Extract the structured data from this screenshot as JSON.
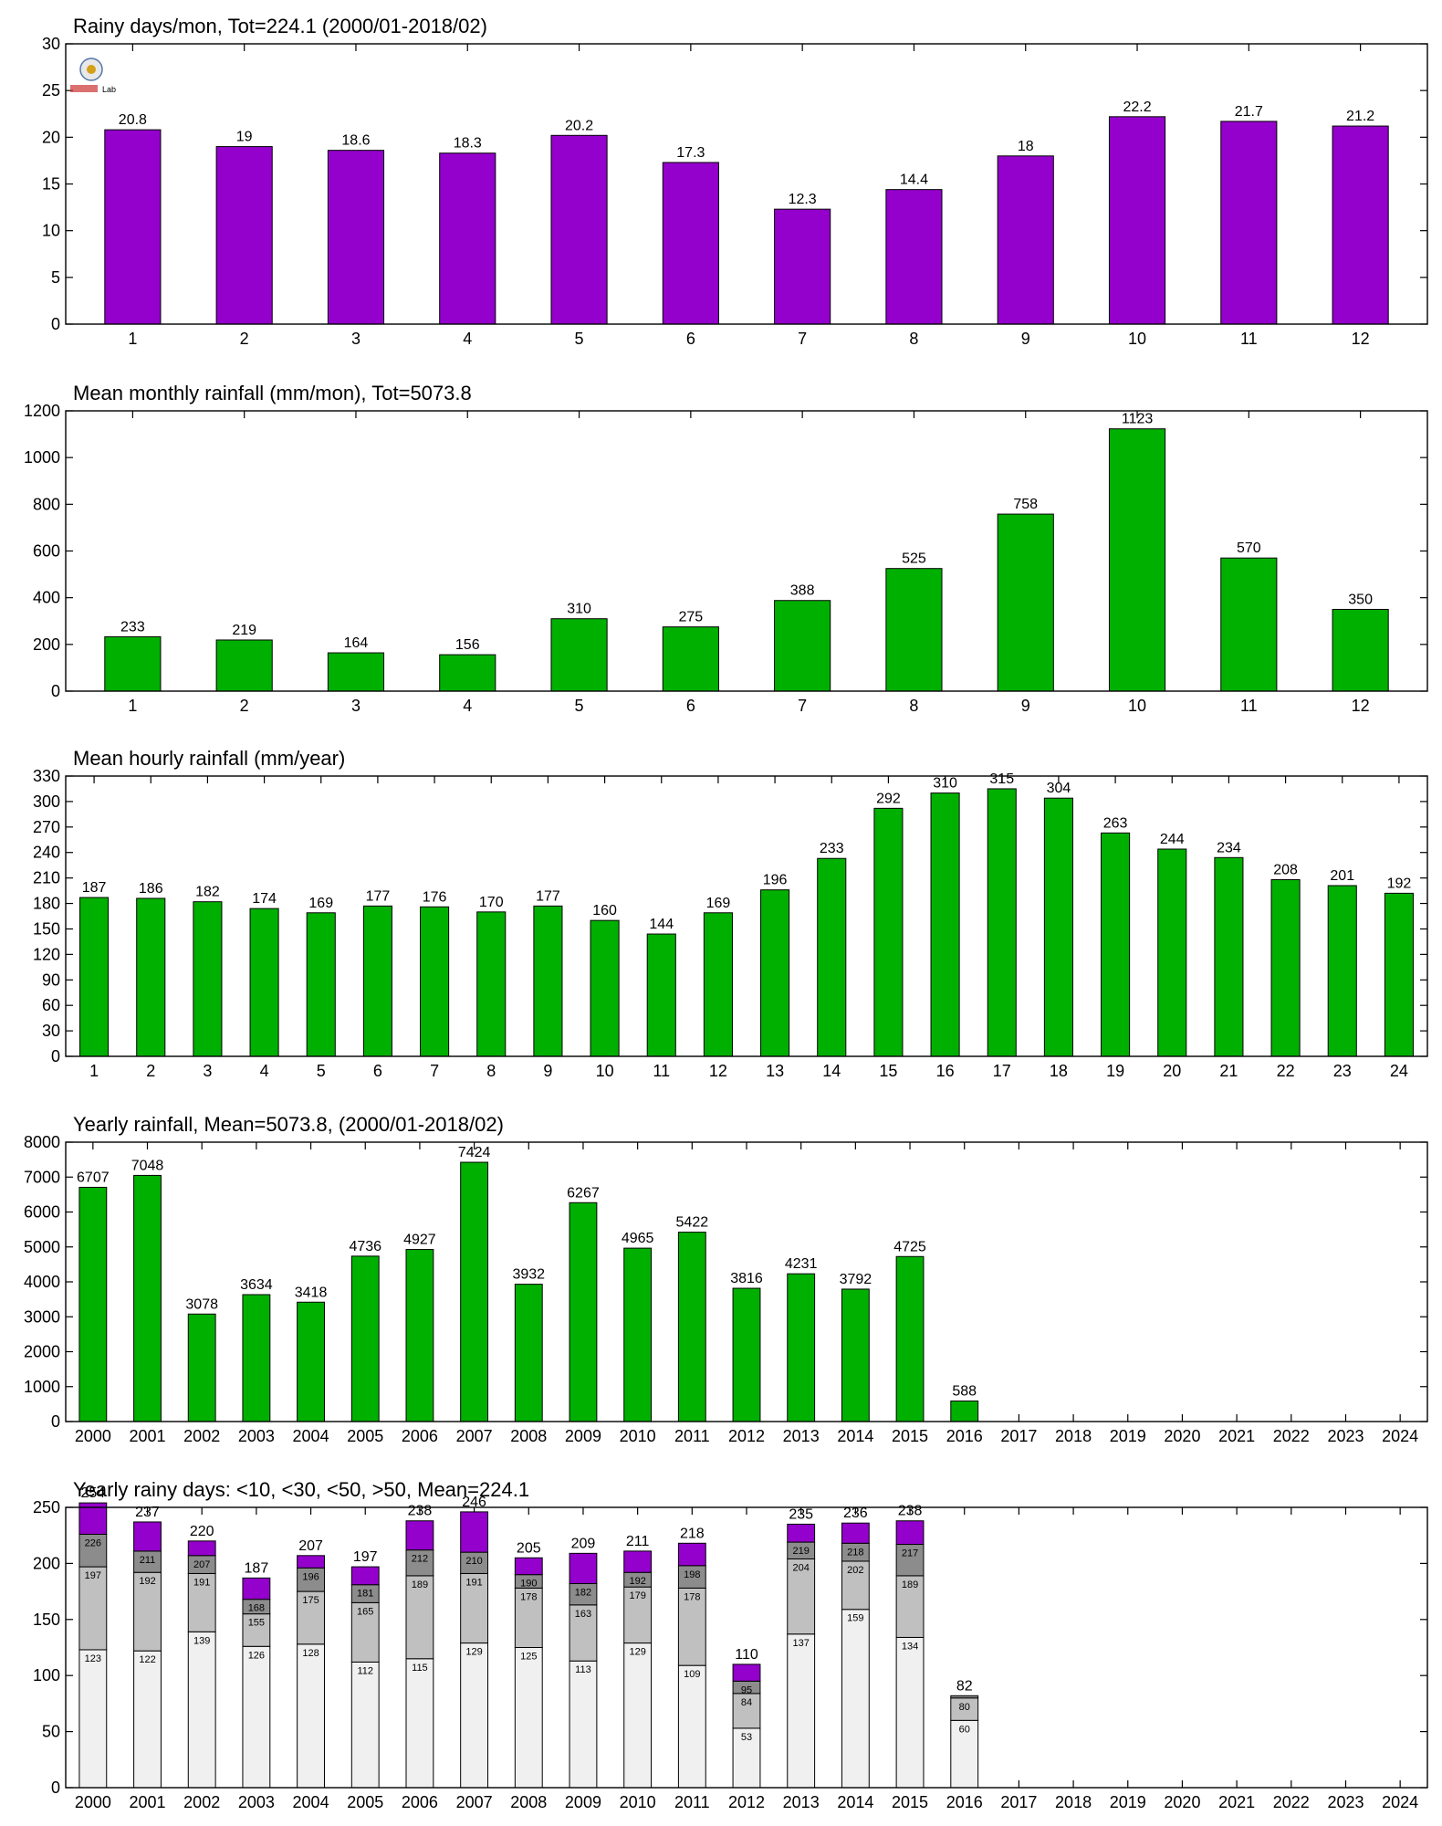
{
  "chart_data": [
    {
      "type": "bar",
      "title": "Rainy days/mon, Tot=224.1 (2000/01-2018/02)",
      "categories": [
        "1",
        "2",
        "3",
        "4",
        "5",
        "6",
        "7",
        "8",
        "9",
        "10",
        "11",
        "12"
      ],
      "values": [
        20.8,
        19,
        18.6,
        18.3,
        20.2,
        17.3,
        12.3,
        14.4,
        18,
        22.2,
        21.7,
        21.2
      ],
      "value_labels": [
        "20.8",
        "19",
        "18.6",
        "18.3",
        "20.2",
        "17.3",
        "12.3",
        "14.4",
        "18",
        "22.2",
        "21.7",
        "21.2"
      ],
      "ylim": [
        0,
        30
      ],
      "yticks": [
        0,
        5,
        10,
        15,
        20,
        25,
        30
      ],
      "color": "#9400cc",
      "grid": false
    },
    {
      "type": "bar",
      "title": "Mean monthly rainfall (mm/mon), Tot=5073.8",
      "categories": [
        "1",
        "2",
        "3",
        "4",
        "5",
        "6",
        "7",
        "8",
        "9",
        "10",
        "11",
        "12"
      ],
      "values": [
        233,
        219,
        164,
        156,
        310,
        275,
        388,
        525,
        758,
        1123,
        570,
        350
      ],
      "value_labels": [
        "233",
        "219",
        "164",
        "156",
        "310",
        "275",
        "388",
        "525",
        "758",
        "1123",
        "570",
        "350"
      ],
      "ylim": [
        0,
        1200
      ],
      "yticks": [
        0,
        200,
        400,
        600,
        800,
        1000,
        1200
      ],
      "color": "#00b000",
      "grid": false
    },
    {
      "type": "bar",
      "title": "Mean hourly rainfall (mm/year)",
      "categories": [
        "1",
        "2",
        "3",
        "4",
        "5",
        "6",
        "7",
        "8",
        "9",
        "10",
        "11",
        "12",
        "13",
        "14",
        "15",
        "16",
        "17",
        "18",
        "19",
        "20",
        "21",
        "22",
        "23",
        "24"
      ],
      "values": [
        187,
        186,
        182,
        174,
        169,
        177,
        176,
        170,
        177,
        160,
        144,
        169,
        196,
        233,
        292,
        310,
        315,
        304,
        263,
        244,
        234,
        208,
        201,
        192
      ],
      "value_labels": [
        "187",
        "186",
        "182",
        "174",
        "169",
        "177",
        "176",
        "170",
        "177",
        "160",
        "144",
        "169",
        "196",
        "233",
        "292",
        "310",
        "315",
        "304",
        "263",
        "244",
        "234",
        "208",
        "201",
        "192"
      ],
      "ylim": [
        0,
        330
      ],
      "yticks": [
        0,
        30,
        60,
        90,
        120,
        150,
        180,
        210,
        240,
        270,
        300,
        330
      ],
      "color": "#00b000",
      "grid": false
    },
    {
      "type": "bar",
      "title": "Yearly rainfall, Mean=5073.8, (2000/01-2018/02)",
      "categories": [
        "2000",
        "2001",
        "2002",
        "2003",
        "2004",
        "2005",
        "2006",
        "2007",
        "2008",
        "2009",
        "2010",
        "2011",
        "2012",
        "2013",
        "2014",
        "2015",
        "2016",
        "2017",
        "2018",
        "2019",
        "2020",
        "2021",
        "2022",
        "2023",
        "2024"
      ],
      "values": [
        6707,
        7048,
        3078,
        3634,
        3418,
        4736,
        4927,
        7424,
        3932,
        6267,
        4965,
        5422,
        3816,
        4231,
        3792,
        4725,
        588,
        null,
        null,
        null,
        null,
        null,
        null,
        null,
        null
      ],
      "value_labels": [
        "6707",
        "7048",
        "3078",
        "3634",
        "3418",
        "4736",
        "4927",
        "7424",
        "3932",
        "6267",
        "4965",
        "5422",
        "3816",
        "4231",
        "3792",
        "4725",
        "588",
        "",
        "",
        "",
        "",
        "",
        "",
        "",
        ""
      ],
      "ylim": [
        0,
        8000
      ],
      "yticks": [
        0,
        1000,
        2000,
        3000,
        4000,
        5000,
        6000,
        7000,
        8000
      ],
      "color": "#00b000",
      "grid": false
    },
    {
      "type": "bar",
      "title": "Yearly rainy days: <10, <30, <50, >50, Mean=224.1",
      "categories": [
        "2000",
        "2001",
        "2002",
        "2003",
        "2004",
        "2005",
        "2006",
        "2007",
        "2008",
        "2009",
        "2010",
        "2011",
        "2012",
        "2013",
        "2014",
        "2015",
        "2016",
        "2017",
        "2018",
        "2019",
        "2020",
        "2021",
        "2022",
        "2023",
        "2024"
      ],
      "stacked_cumulative": true,
      "series": [
        {
          "name": "<10",
          "color": "#f0f0f0",
          "values": [
            123,
            122,
            139,
            126,
            128,
            112,
            115,
            129,
            125,
            113,
            129,
            109,
            53,
            137,
            159,
            134,
            60,
            null,
            null,
            null,
            null,
            null,
            null,
            null,
            null
          ]
        },
        {
          "name": "<30",
          "color": "#c0c0c0",
          "values": [
            197,
            192,
            191,
            155,
            175,
            165,
            189,
            191,
            178,
            163,
            179,
            178,
            84,
            204,
            202,
            189,
            80,
            null,
            null,
            null,
            null,
            null,
            null,
            null,
            null
          ]
        },
        {
          "name": "<50",
          "color": "#8c8c8c",
          "values": [
            226,
            211,
            207,
            168,
            196,
            181,
            212,
            210,
            190,
            182,
            192,
            198,
            95,
            219,
            218,
            217,
            82,
            null,
            null,
            null,
            null,
            null,
            null,
            null,
            null
          ]
        },
        {
          "name": ">50",
          "color": "#9400cc",
          "values": [
            254,
            237,
            220,
            187,
            207,
            197,
            238,
            246,
            205,
            209,
            211,
            218,
            110,
            235,
            236,
            238,
            82,
            null,
            null,
            null,
            null,
            null,
            null,
            null,
            null
          ]
        }
      ],
      "total_labels": [
        "254",
        "237",
        "220",
        "187",
        "207",
        "197",
        "238",
        "246",
        "205",
        "209",
        "211",
        "218",
        "110",
        "235",
        "236",
        "238",
        "82",
        "",
        "",
        "",
        "",
        "",
        "",
        "",
        ""
      ],
      "segment_labels": [
        [
          "123",
          "197",
          "226"
        ],
        [
          "122",
          "192",
          "211"
        ],
        [
          "139",
          "191",
          "207"
        ],
        [
          "126",
          "155",
          "168"
        ],
        [
          "128",
          "175",
          "196"
        ],
        [
          "112",
          "165",
          "181"
        ],
        [
          "115",
          "189",
          "212"
        ],
        [
          "129",
          "191",
          "210"
        ],
        [
          "125",
          "178",
          "190"
        ],
        [
          "113",
          "163",
          "182"
        ],
        [
          "129",
          "179",
          "192"
        ],
        [
          "109",
          "178",
          "198"
        ],
        [
          "53",
          "84",
          "95"
        ],
        [
          "137",
          "204",
          "219"
        ],
        [
          "159",
          "202",
          "218"
        ],
        [
          "134",
          "189",
          "217"
        ],
        [
          "60",
          "80",
          ""
        ],
        [],
        [],
        [],
        [],
        [],
        [],
        [],
        []
      ],
      "ylim": [
        0,
        250
      ],
      "yticks": [
        0,
        50,
        100,
        150,
        200,
        250
      ],
      "grid": false
    }
  ],
  "logo": {
    "text": "Lab"
  }
}
